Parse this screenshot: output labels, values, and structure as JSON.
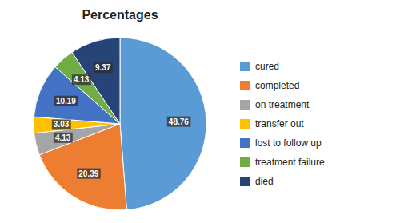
{
  "chart_data": {
    "type": "pie",
    "title": "Percentages",
    "categories": [
      "cured",
      "completed",
      "on treatment",
      "transfer out",
      "lost to follow up",
      "treatment failure",
      "died"
    ],
    "values": [
      48.76,
      20.39,
      4.13,
      3.03,
      10.19,
      4.13,
      9.37
    ],
    "colors": [
      "#5B9BD5",
      "#ED7D31",
      "#A5A5A5",
      "#FFC000",
      "#4472C4",
      "#70AD47",
      "#264478"
    ],
    "data_labels": true,
    "legend": "right"
  }
}
